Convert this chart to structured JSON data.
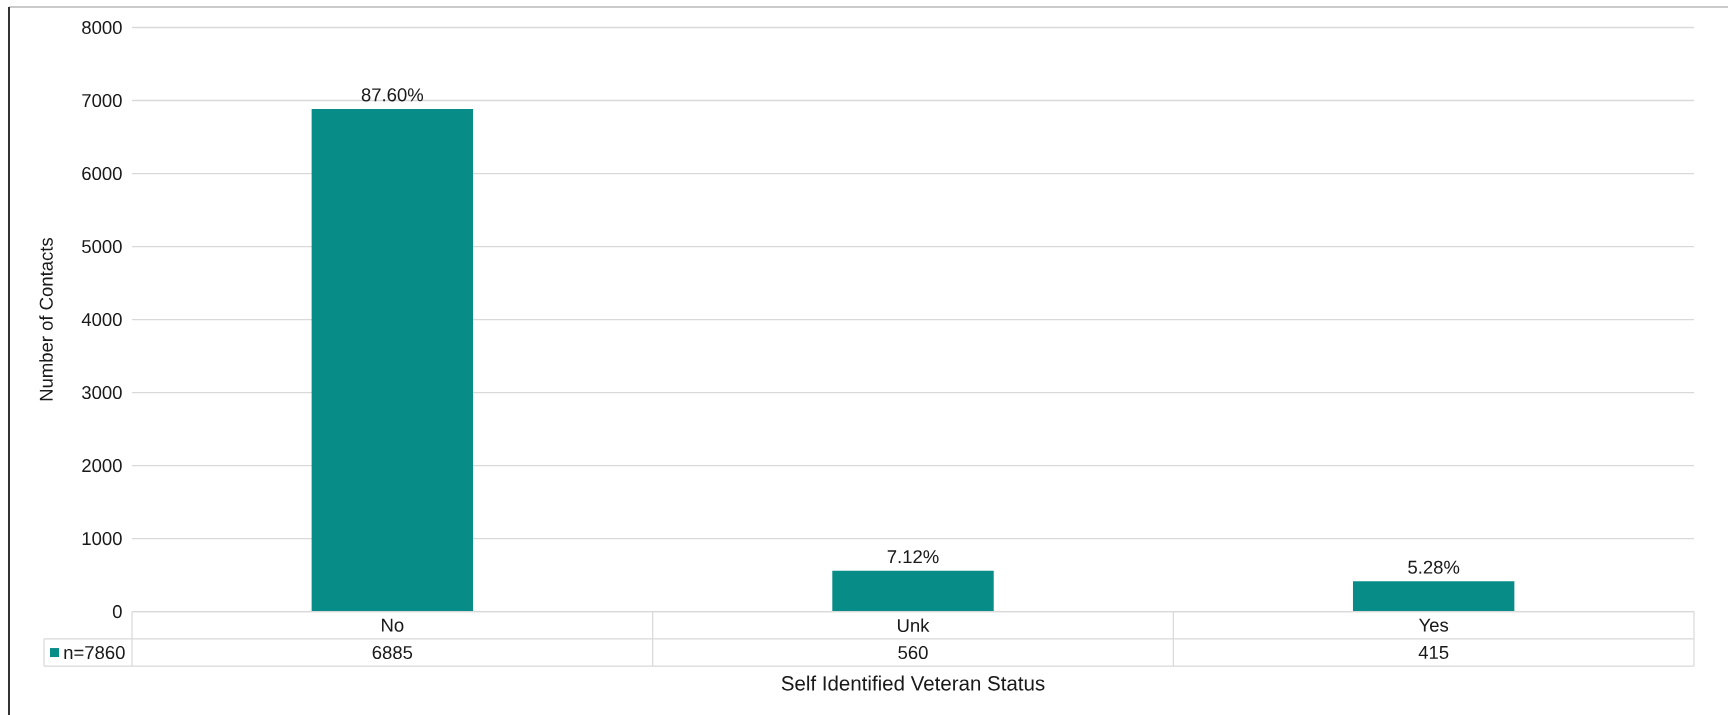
{
  "chart_data": {
    "type": "bar",
    "xlabel": "Self Identified Veteran Status",
    "ylabel": "Number of Contacts",
    "categories": [
      "No",
      "Unk",
      "Yes"
    ],
    "series": [
      {
        "name": "n=7860",
        "color": "#088c87",
        "values": [
          6885,
          560,
          415
        ]
      }
    ],
    "ylim": [
      0,
      8000
    ],
    "yticks": [
      0,
      1000,
      2000,
      3000,
      4000,
      5000,
      6000,
      7000,
      8000
    ],
    "annotations": [
      {
        "text": "87.60%",
        "x": "No",
        "y": 6885
      },
      {
        "text": "7.12%",
        "x": "Unk",
        "y": 560
      },
      {
        "text": "5.28%",
        "x": "Yes",
        "y": 415
      }
    ],
    "grid": "y",
    "legend": "bottom",
    "data_labels": true
  }
}
